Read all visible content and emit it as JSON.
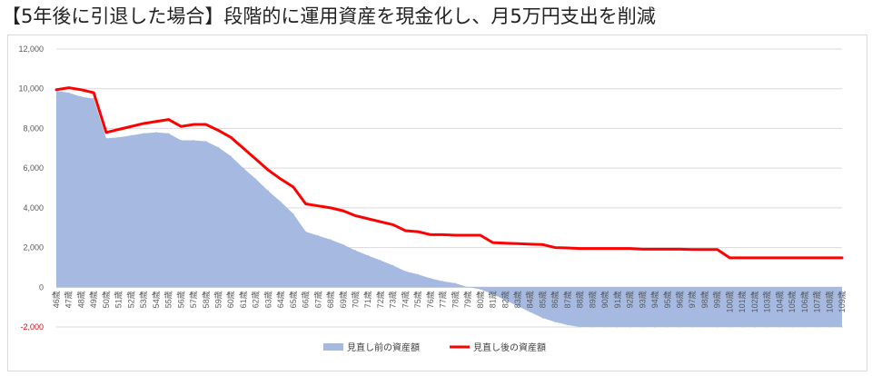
{
  "page_title": "【5年後に引退した場合】段階的に運用資産を現金化し、月5万円支出を削減",
  "chart_data": {
    "type": "area",
    "title": "",
    "xlabel": "",
    "ylabel": "",
    "ylim": [
      -2000,
      12000
    ],
    "grid": true,
    "legend_position": "bottom",
    "y_ticks": [
      "12,000",
      "10,000",
      "8,000",
      "6,000",
      "4,000",
      "2,000",
      "0",
      "-2,000"
    ],
    "y_tick_values": [
      12000,
      10000,
      8000,
      6000,
      4000,
      2000,
      0,
      -2000
    ],
    "categories": [
      "46歳",
      "47歳",
      "48歳",
      "49歳",
      "50歳",
      "51歳",
      "52歳",
      "53歳",
      "54歳",
      "55歳",
      "56歳",
      "57歳",
      "58歳",
      "59歳",
      "60歳",
      "61歳",
      "62歳",
      "63歳",
      "64歳",
      "65歳",
      "66歳",
      "67歳",
      "68歳",
      "69歳",
      "70歳",
      "71歳",
      "72歳",
      "73歳",
      "74歳",
      "75歳",
      "76歳",
      "77歳",
      "78歳",
      "79歳",
      "80歳",
      "81歳",
      "82歳",
      "83歳",
      "84歳",
      "85歳",
      "86歳",
      "87歳",
      "88歳",
      "89歳",
      "90歳",
      "91歳",
      "92歳",
      "93歳",
      "94歳",
      "95歳",
      "96歳",
      "97歳",
      "98歳",
      "99歳",
      "100歳",
      "101歳",
      "102歳",
      "103歳",
      "104歳",
      "105歳",
      "106歳",
      "107歳",
      "108歳",
      "109歳"
    ],
    "series": [
      {
        "name": "見直し前の資産額",
        "kind": "area",
        "color": "#a5b9e1",
        "values": [
          9900,
          9800,
          9600,
          9500,
          7500,
          7550,
          7650,
          7750,
          7800,
          7750,
          7400,
          7400,
          7350,
          7050,
          6600,
          6000,
          5450,
          4850,
          4300,
          3700,
          2800,
          2600,
          2400,
          2150,
          1850,
          1600,
          1350,
          1100,
          800,
          650,
          450,
          300,
          200,
          0,
          -100,
          -350,
          -650,
          -950,
          -1250,
          -1550,
          -1750,
          -1900,
          -2000,
          -2000,
          -2000,
          -2000,
          -2000,
          -2000,
          -2000,
          -2000,
          -2000,
          -2000,
          -2000,
          -2000,
          -2000,
          -2000,
          -2000,
          -2000,
          -2000,
          -2000,
          -2000,
          -2000,
          -2000,
          -2000
        ]
      },
      {
        "name": "見直し後の資産額",
        "kind": "line",
        "color": "#ff0000",
        "values": [
          9950,
          10050,
          9950,
          9800,
          7800,
          7950,
          8100,
          8250,
          8350,
          8450,
          8100,
          8200,
          8200,
          7900,
          7550,
          7000,
          6450,
          5900,
          5450,
          5050,
          4200,
          4100,
          4000,
          3850,
          3600,
          3450,
          3300,
          3150,
          2850,
          2800,
          2650,
          2650,
          2620,
          2620,
          2620,
          2250,
          2220,
          2200,
          2170,
          2150,
          2000,
          1980,
          1950,
          1950,
          1950,
          1950,
          1950,
          1920,
          1920,
          1920,
          1920,
          1900,
          1900,
          1900,
          1480,
          1480,
          1480,
          1480,
          1480,
          1480,
          1480,
          1480,
          1480,
          1480
        ]
      }
    ]
  }
}
